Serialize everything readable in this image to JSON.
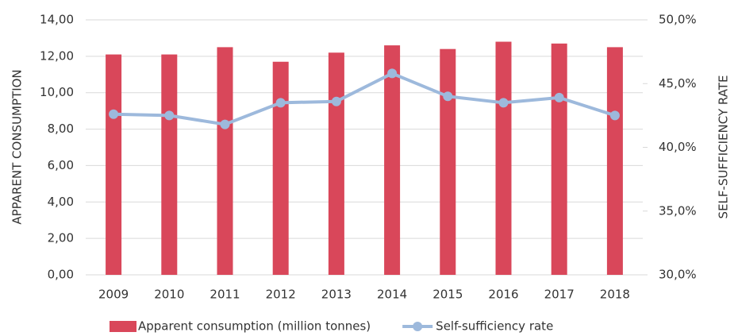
{
  "chart_data": {
    "type": "bar",
    "ylabel": "APPARENT CONSUMPTION",
    "y2label": "SELF-SUFFICIENCY RATE",
    "categories": [
      "2009",
      "2010",
      "2011",
      "2012",
      "2013",
      "2014",
      "2015",
      "2016",
      "2017",
      "2018"
    ],
    "series": [
      {
        "name": "Apparent consumption (million tonnes)",
        "type": "bar",
        "color": "#d9475a",
        "values": [
          12.1,
          12.1,
          12.5,
          11.7,
          12.2,
          12.6,
          12.4,
          12.8,
          12.7,
          12.5
        ]
      },
      {
        "name": "Self-sufficiency rate",
        "type": "line",
        "axis": "y2",
        "color": "#9db9dc",
        "values": [
          42.6,
          42.5,
          41.8,
          43.5,
          43.6,
          45.8,
          44.0,
          43.5,
          43.9,
          42.5
        ]
      }
    ],
    "ylim": [
      0,
      14
    ],
    "yticks": [
      {
        "value": 0,
        "label": "0,00"
      },
      {
        "value": 2,
        "label": "2,00"
      },
      {
        "value": 4,
        "label": "4,00"
      },
      {
        "value": 6,
        "label": "6,00"
      },
      {
        "value": 8,
        "label": "8,00"
      },
      {
        "value": 10,
        "label": "10,00"
      },
      {
        "value": 12,
        "label": "12,00"
      },
      {
        "value": 14,
        "label": "14,00"
      }
    ],
    "y2lim": [
      30,
      50
    ],
    "y2ticks": [
      {
        "value": 30,
        "label": "30,0%"
      },
      {
        "value": 35,
        "label": "35,0%"
      },
      {
        "value": 40,
        "label": "40,0%"
      },
      {
        "value": 45,
        "label": "45,0%"
      },
      {
        "value": 50,
        "label": "50,0%"
      }
    ],
    "grid": true,
    "legend": "bottom"
  }
}
